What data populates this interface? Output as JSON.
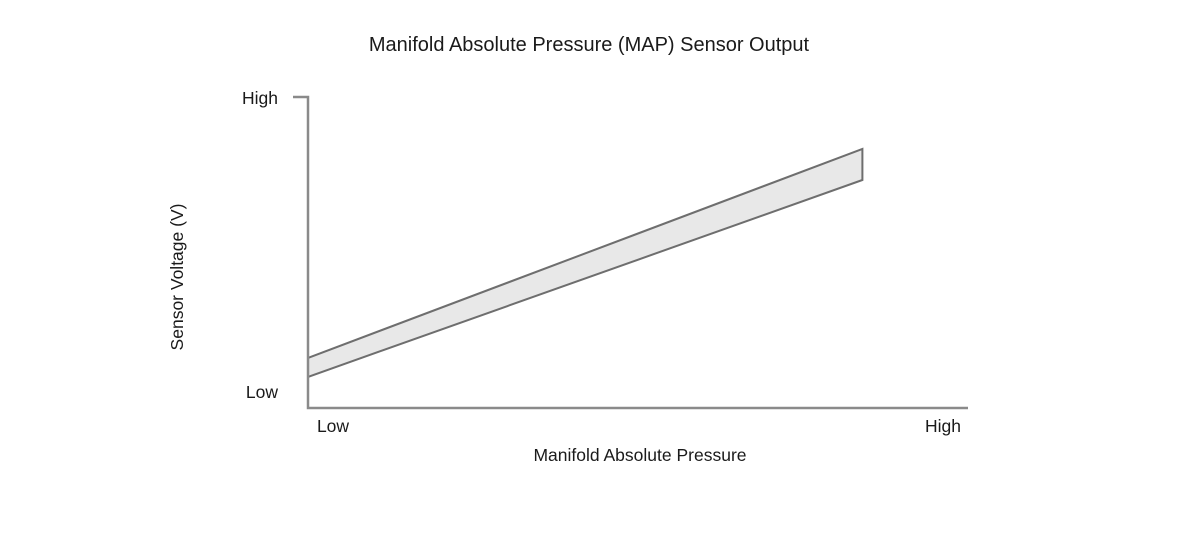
{
  "figure": {
    "title": "Manifold Absolute Pressure (MAP) Sensor Output",
    "x_axis": {
      "label": "Manifold Absolute Pressure",
      "tick_low": "Low",
      "tick_high": "High"
    },
    "y_axis": {
      "label": "Sensor Voltage (V)",
      "tick_low": "Low",
      "tick_high": "High"
    }
  },
  "colors": {
    "text": "#1a1a1a",
    "axis": "#8a8a8a",
    "band_fill": "#e8e8e8",
    "band_stroke": "#6e6e6e",
    "background": "#ffffff"
  },
  "chart_data": {
    "type": "area",
    "title": "Manifold Absolute Pressure (MAP) Sensor Output",
    "xlabel": "Manifold Absolute Pressure",
    "ylabel": "Sensor Voltage (V)",
    "x_tick_labels": [
      "Low",
      "High"
    ],
    "y_tick_labels": [
      "Low",
      "High"
    ],
    "xlim": [
      0,
      1
    ],
    "ylim": [
      0,
      1
    ],
    "grid": false,
    "legend": false,
    "description": "Qualitative tolerance band: sensor output voltage rises linearly from Low to High as manifold absolute pressure rises from Low to High.",
    "series": [
      {
        "name": "band_upper_edge",
        "x": [
          0.0,
          0.84
        ],
        "y": [
          0.161,
          0.833
        ]
      },
      {
        "name": "band_lower_edge",
        "x": [
          0.0,
          0.84
        ],
        "y": [
          0.1,
          0.733
        ]
      }
    ]
  }
}
